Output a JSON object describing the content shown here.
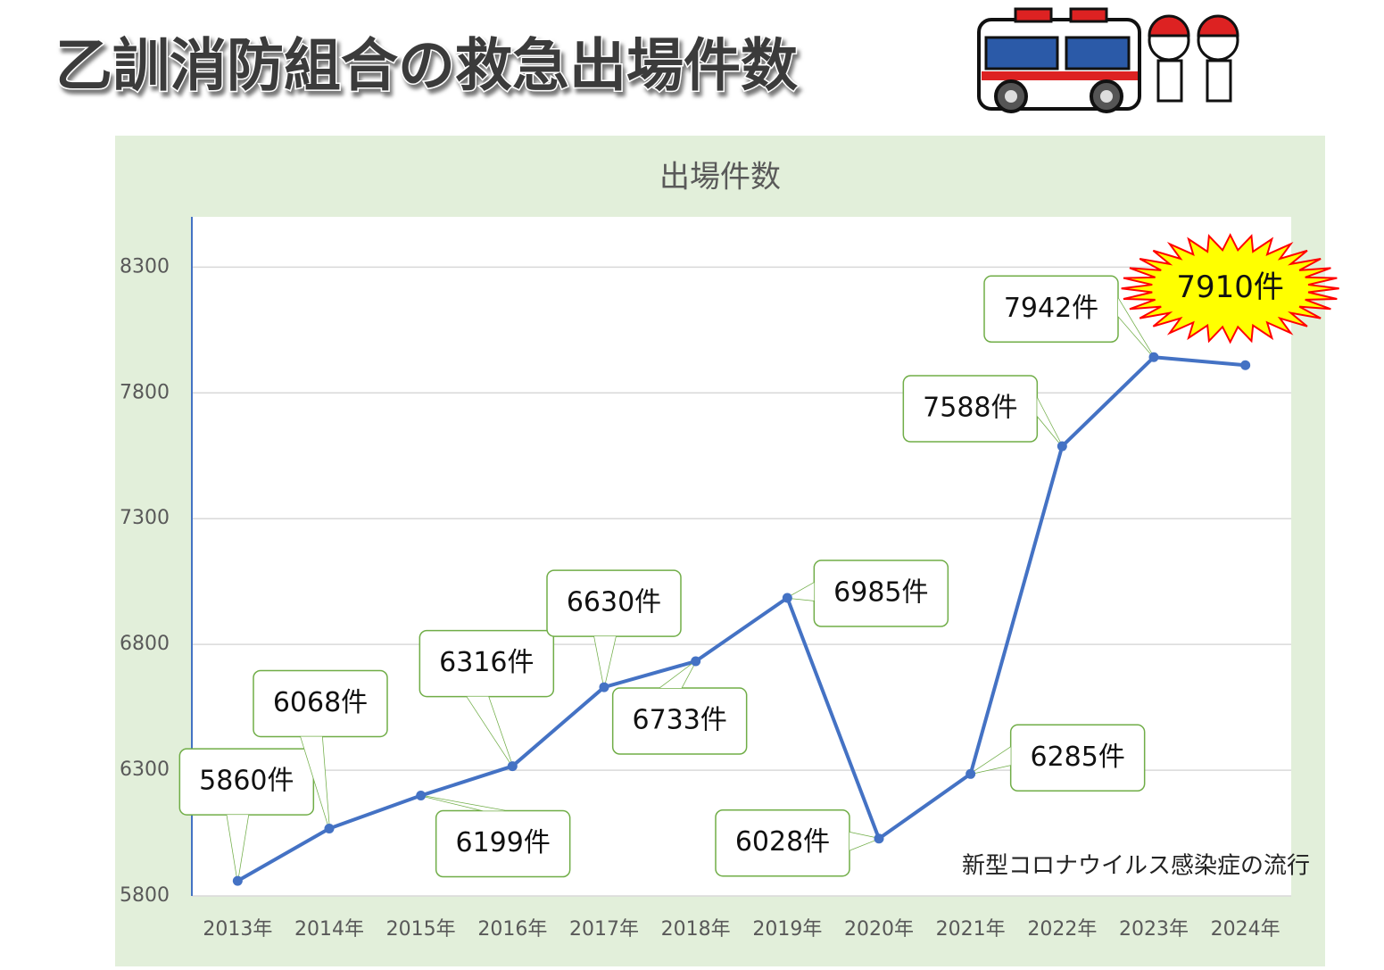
{
  "page_title": "乙訓消防組合の救急出場件数",
  "chart_data": {
    "type": "line",
    "title": "出場件数",
    "categories": [
      "2013年",
      "2014年",
      "2015年",
      "2016年",
      "2017年",
      "2018年",
      "2019年",
      "2020年",
      "2021年",
      "2022年",
      "2023年",
      "2024年"
    ],
    "values": [
      5860,
      6068,
      6199,
      6316,
      6630,
      6733,
      6985,
      6028,
      6285,
      7588,
      7942,
      7910
    ],
    "value_labels": [
      "5860件",
      "6068件",
      "6199件",
      "6316件",
      "6630件",
      "6733件",
      "6985件",
      "6028件",
      "6285件",
      "7588件",
      "7942件",
      "7910件"
    ],
    "color": "#4472c4",
    "ylim": [
      5800,
      8500
    ],
    "yticks": [
      5800,
      6300,
      6800,
      7300,
      7800,
      8300
    ],
    "grid": true,
    "annotation": "新型コロナウイルス感染症の流行"
  }
}
